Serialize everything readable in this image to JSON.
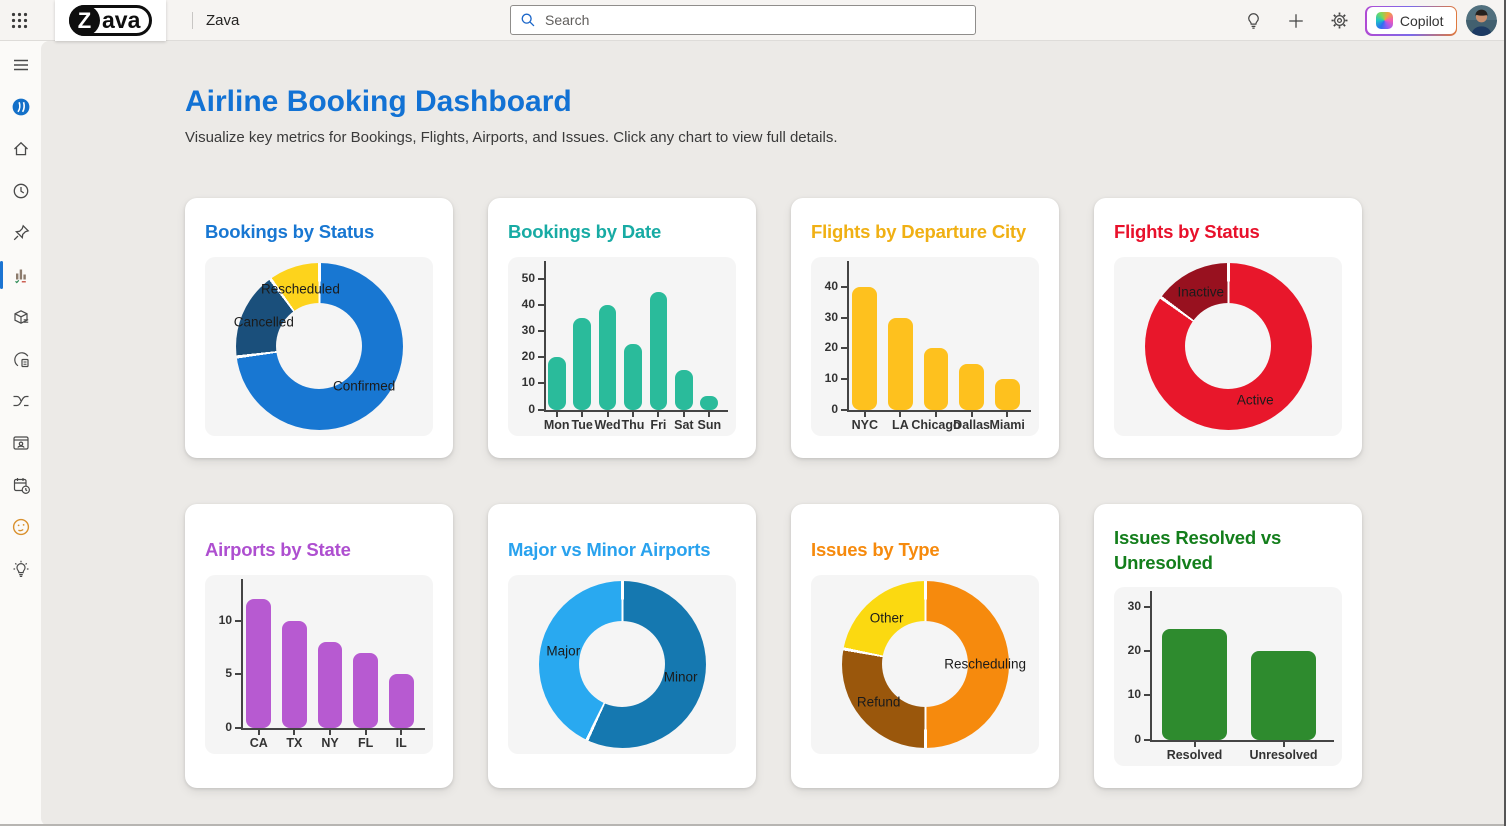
{
  "topbar": {
    "logo_z": "Z",
    "logo_rest": "ava",
    "app_name": "Zava",
    "search": {
      "placeholder": "Search"
    },
    "copilot_label": "Copilot"
  },
  "sidebar": {
    "active_item": "dashboard-report",
    "active_color": "#1B74D2",
    "items": [
      "hamburger-menu",
      "app-disc",
      "home",
      "recent-clock",
      "pin",
      "dashboard-report",
      "package-deploy",
      "monitor-document",
      "routes",
      "app-window-person",
      "schedule-calendar",
      "feedback-smiley",
      "ideas-bulb"
    ]
  },
  "header": {
    "title": "Airline Booking Dashboard",
    "title_color": "#1272D4",
    "subtitle": "Visualize key metrics for Bookings, Flights, Airports, and Issues. Click any chart to view full details."
  },
  "chart_data": [
    {
      "type": "doughnut",
      "title": "Bookings by Status",
      "title_color": "#1877D2",
      "labels": [
        "Confirmed",
        "Cancelled",
        "Rescheduled"
      ],
      "values": [
        73,
        17,
        10
      ],
      "colors": [
        "#1877D2",
        "#1A4F7B",
        "#FDD31C"
      ]
    },
    {
      "type": "bar",
      "title": "Bookings by Date",
      "title_color": "#18ABA4",
      "categories": [
        "Mon",
        "Tue",
        "Wed",
        "Thu",
        "Fri",
        "Sat",
        "Sun"
      ],
      "values": [
        20,
        35,
        40,
        25,
        45,
        15,
        5
      ],
      "bar_color": "#2ABB9B",
      "yticks": [
        0,
        10,
        20,
        30,
        40,
        50
      ],
      "ymax": 54
    },
    {
      "type": "bar",
      "title": "Flights by Departure City",
      "title_color": "#F0B014",
      "categories": [
        "NYC",
        "LA",
        "Chicago",
        "Dallas",
        "Miami"
      ],
      "values": [
        40,
        30,
        20,
        15,
        10
      ],
      "bar_color": "#FEC11E",
      "yticks": [
        0,
        10,
        20,
        30,
        40
      ],
      "ymax": 46
    },
    {
      "type": "doughnut",
      "title": "Flights by Status",
      "title_color": "#E8112B",
      "labels": [
        "Active",
        "Inactive"
      ],
      "values": [
        85,
        15
      ],
      "colors": [
        "#E8172B",
        "#98111F"
      ]
    },
    {
      "type": "bar",
      "title": "Airports by State",
      "title_color": "#AE4FD0",
      "categories": [
        "CA",
        "TX",
        "NY",
        "FL",
        "IL"
      ],
      "values": [
        12,
        10,
        8,
        7,
        5
      ],
      "bar_color": "#B75AD1",
      "yticks": [
        0,
        5,
        10
      ],
      "ymax": 13.2
    },
    {
      "type": "doughnut",
      "title": "Major vs Minor Airports",
      "title_color": "#29A2EE",
      "labels": [
        "Minor",
        "Major"
      ],
      "values": [
        57,
        43
      ],
      "colors": [
        "#1578B0",
        "#29A9F0"
      ]
    },
    {
      "type": "doughnut",
      "title": "Issues by Type",
      "title_color": "#F68A0D",
      "labels": [
        "Rescheduling",
        "Refund",
        "Other"
      ],
      "values": [
        50,
        28,
        22
      ],
      "colors": [
        "#F68A0D",
        "#9A570C",
        "#FBD911"
      ]
    },
    {
      "type": "bar",
      "title": "Issues Resolved vs Unresolved",
      "title_color": "#137E1B",
      "categories": [
        "Resolved",
        "Unresolved"
      ],
      "values": [
        25,
        20
      ],
      "bar_color": "#2E8B2E",
      "yticks": [
        0,
        10,
        20,
        30
      ],
      "ymax": 32
    }
  ]
}
